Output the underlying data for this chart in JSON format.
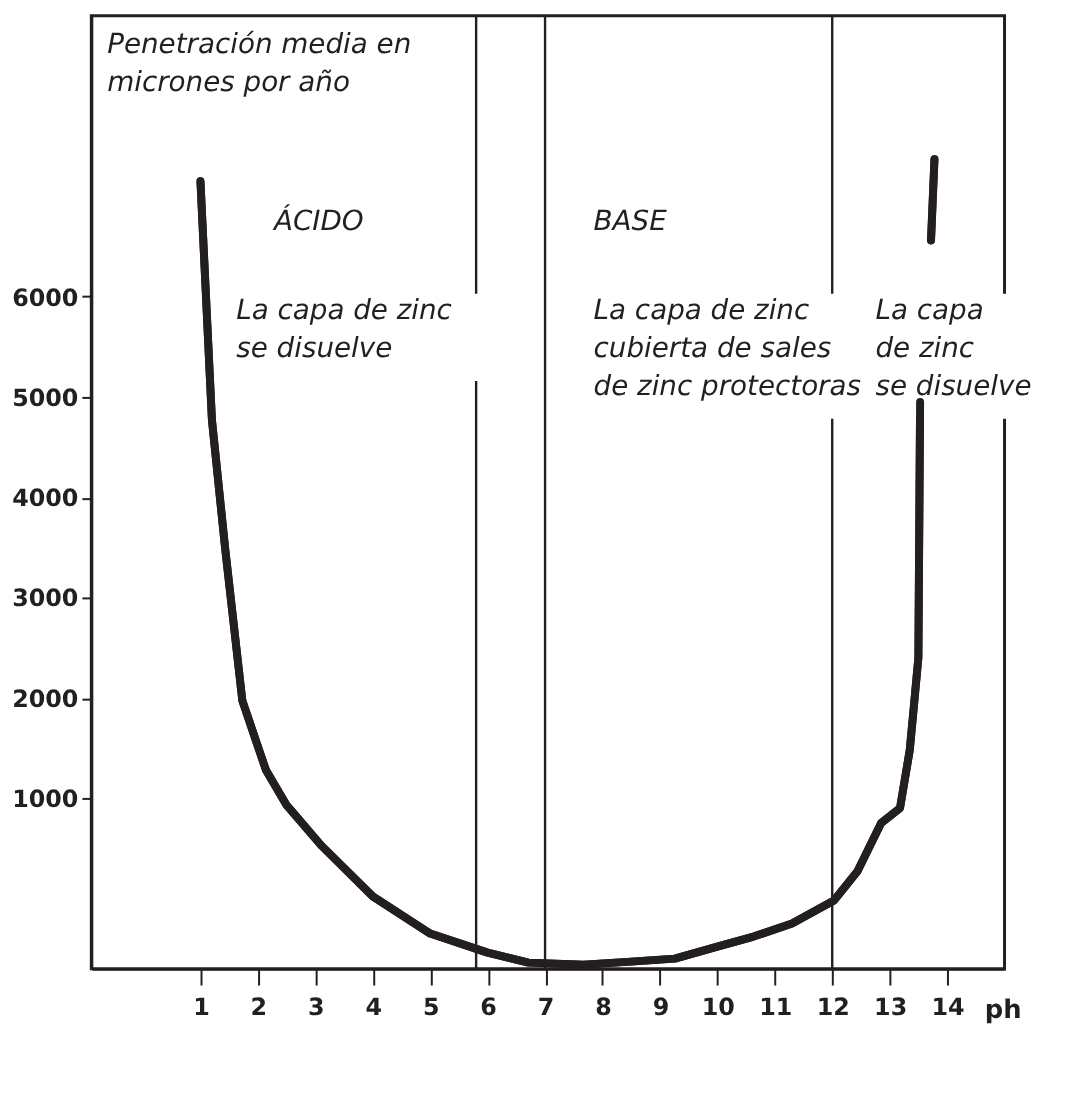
{
  "chart_data": {
    "type": "line",
    "ylabel": "Penetración media en\nmicrones por año",
    "xlabel": "ph",
    "x": [
      1.0,
      1.2,
      1.43,
      1.73,
      2.14,
      2.5,
      3.1,
      4.0,
      5.0,
      6.0,
      6.71,
      7.67,
      8.5,
      9.26,
      10.0,
      10.63,
      11.3,
      12.03,
      12.44,
      12.85,
      13.18,
      13.35,
      13.44,
      13.5,
      13.53,
      13.6,
      13.72,
      13.78
    ],
    "series": [
      {
        "color": "#231f20",
        "values": [
          7150,
          4770,
          3490,
          1970,
          1280,
          930,
          530,
          20,
          -350,
          -540,
          -640,
          -660,
          -630,
          -600,
          -480,
          -380,
          -250,
          -20,
          270,
          750,
          900,
          1480,
          2030,
          2400,
          4950,
          null,
          6560,
          7370
        ]
      }
    ],
    "xlim": [
      -0.9,
      15.0
    ],
    "ylim": [
      -700,
      8800
    ],
    "xticks": [
      1,
      2,
      3,
      4,
      5,
      6,
      7,
      8,
      9,
      10,
      11,
      12,
      13,
      14
    ],
    "yticks": [
      1000,
      2000,
      3000,
      4000,
      5000,
      6000
    ],
    "grid": false,
    "marker": "none",
    "line_style": "solid",
    "ref_lines": [
      {
        "axis": "x",
        "value": 5.8,
        "color": "#231f20"
      },
      {
        "axis": "x",
        "value": 7,
        "color": "#231f20"
      },
      {
        "axis": "x",
        "value": 12,
        "color": "#231f20"
      }
    ],
    "annotations": [
      "ÁCIDO",
      "BASE",
      "La capa de zinc\nse disuelve",
      "La capa de zinc\ncubierta de sales\nde zinc protectoras",
      "La capa\nde zinc\nse disuelve"
    ]
  }
}
